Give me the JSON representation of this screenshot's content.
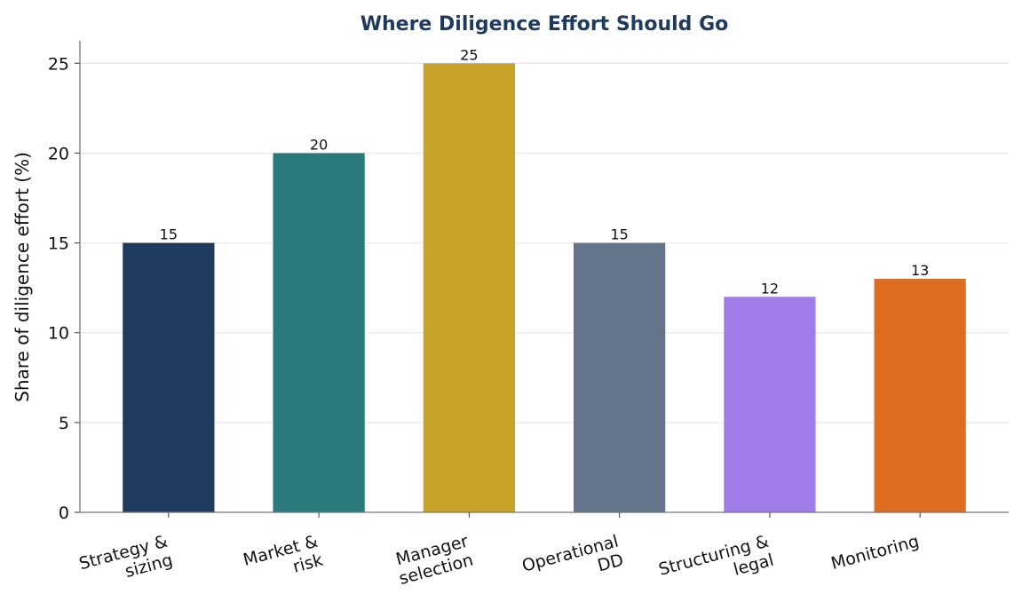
{
  "chart_data": {
    "type": "bar",
    "title": "Where Diligence Effort Should Go",
    "y_label": "Share of diligence effort (%)",
    "categories": [
      "Strategy &\nsizing",
      "Market &\nrisk",
      "Manager\nselection",
      "Operational\nDD",
      "Structuring &\nlegal",
      "Monitoring"
    ],
    "values": [
      15,
      20,
      25,
      15,
      12,
      13
    ],
    "colors": [
      "#1f3a5f",
      "#2a7a7b",
      "#c9a22a",
      "#64748b",
      "#a07ce8",
      "#dd6b20"
    ],
    "ylim": [
      0,
      26.25
    ],
    "yticks": [
      0,
      5,
      10,
      15,
      20,
      25
    ],
    "grid": true
  }
}
